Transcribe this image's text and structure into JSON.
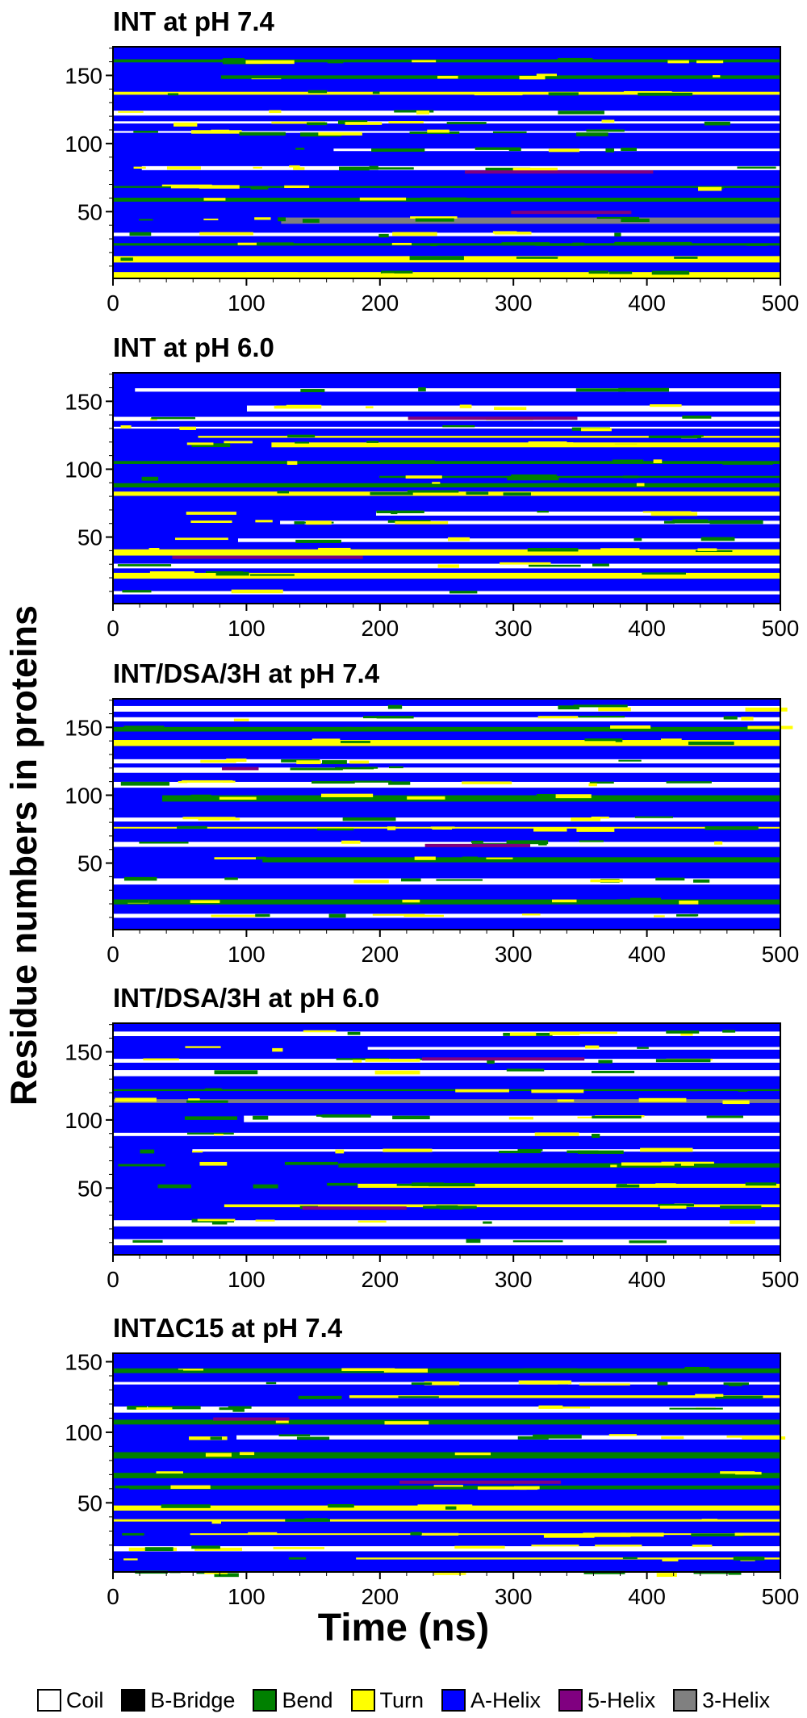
{
  "figure": {
    "ylabel": "Residue numbers in proteins",
    "xlabel": "Time (ns)"
  },
  "chart_data": [
    {
      "type": "heatmap",
      "title": "INT at pH 7.4",
      "x_ticks": [
        "0",
        "100",
        "200",
        "300",
        "400",
        "500"
      ],
      "y_ticks": [
        "50",
        "100",
        "150"
      ],
      "xlim": [
        0,
        500
      ],
      "ylim": [
        1,
        171
      ],
      "grid": false
    },
    {
      "type": "heatmap",
      "title": "INT at pH 6.0",
      "x_ticks": [
        "0",
        "100",
        "200",
        "300",
        "400",
        "500"
      ],
      "y_ticks": [
        "50",
        "100",
        "150"
      ],
      "xlim": [
        0,
        500
      ],
      "ylim": [
        1,
        171
      ],
      "grid": false
    },
    {
      "type": "heatmap",
      "title": "INT/DSA/3H at pH 7.4",
      "x_ticks": [
        "0",
        "100",
        "200",
        "300",
        "400",
        "500"
      ],
      "y_ticks": [
        "50",
        "100",
        "150"
      ],
      "xlim": [
        0,
        500
      ],
      "ylim": [
        1,
        171
      ],
      "grid": false
    },
    {
      "type": "heatmap",
      "title": "INT/DSA/3H at pH 6.0",
      "x_ticks": [
        "0",
        "100",
        "200",
        "300",
        "400",
        "500"
      ],
      "y_ticks": [
        "50",
        "100",
        "150"
      ],
      "xlim": [
        0,
        500
      ],
      "ylim": [
        1,
        171
      ],
      "grid": false
    },
    {
      "type": "heatmap",
      "title": "INTΔC15 at pH 7.4",
      "x_ticks": [
        "0",
        "100",
        "200",
        "300",
        "400",
        "500"
      ],
      "y_ticks": [
        "50",
        "100",
        "150"
      ],
      "xlim": [
        0,
        500
      ],
      "ylim": [
        1,
        156
      ],
      "grid": false
    }
  ],
  "legend": [
    {
      "label": "Coil",
      "color": "#ffffff"
    },
    {
      "label": "B-Bridge",
      "color": "#000000"
    },
    {
      "label": "Bend",
      "color": "#008000"
    },
    {
      "label": "Turn",
      "color": "#ffff00"
    },
    {
      "label": "A-Helix",
      "color": "#0000ff"
    },
    {
      "label": "5-Helix",
      "color": "#800080"
    },
    {
      "label": "3-Helix",
      "color": "#808080"
    }
  ]
}
